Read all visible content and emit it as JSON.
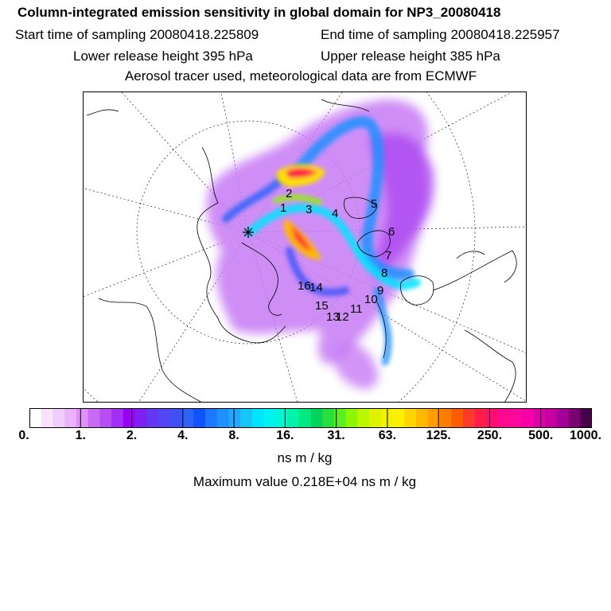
{
  "header": {
    "title": "Column-integrated emission sensitivity in global domain for NP3_20080418",
    "start": "Start time of sampling 20080418.225809",
    "end": "End time of sampling 20080418.225957",
    "lower": "Lower release height  395 hPa",
    "upper": "Upper release height  385 hPa",
    "info": "Aerosol tracer used, meteorological data are from ECMWF"
  },
  "map": {
    "projection": "polar stereographic (north pole)",
    "track_labels": [
      "1",
      "2",
      "3",
      "4",
      "5",
      "6",
      "7",
      "8",
      "9",
      "10",
      "11",
      "12",
      "13",
      "14",
      "15",
      "16"
    ]
  },
  "colorbar": {
    "tick_labels": [
      "0.",
      "1.",
      "2.",
      "4.",
      "8.",
      "16.",
      "31.",
      "63.",
      "125.",
      "250.",
      "500.",
      "1000."
    ],
    "colors": [
      "#ffffff",
      "#f7e4fc",
      "#f1cdfb",
      "#eab3fa",
      "#e192f9",
      "#c86af4",
      "#b84df3",
      "#a32ef5",
      "#9a00f8",
      "#7e1ff4",
      "#6637f2",
      "#5445f5",
      "#3f51f6",
      "#2e63fa",
      "#0f52ff",
      "#1b79ff",
      "#1e91ff",
      "#20a8ff",
      "#18c6f5",
      "#00e5ff",
      "#00f3ef",
      "#00f7d6",
      "#00f3a8",
      "#00ea80",
      "#00d35a",
      "#28df3c",
      "#5aef20",
      "#8ef600",
      "#bcf700",
      "#def200",
      "#f1f200",
      "#fef000",
      "#ffd600",
      "#ffb800",
      "#ff9c00",
      "#ff7d00",
      "#ff5c00",
      "#ff3a2a",
      "#ff1e46",
      "#ff0d72",
      "#ff0a8f",
      "#ff089c",
      "#f700a8",
      "#de00a8",
      "#c400a0",
      "#a3009a",
      "#7c0072",
      "#48004a"
    ]
  },
  "unit": "ns m / kg",
  "max_value": "Maximum value  0.218E+04 ns m / kg"
}
